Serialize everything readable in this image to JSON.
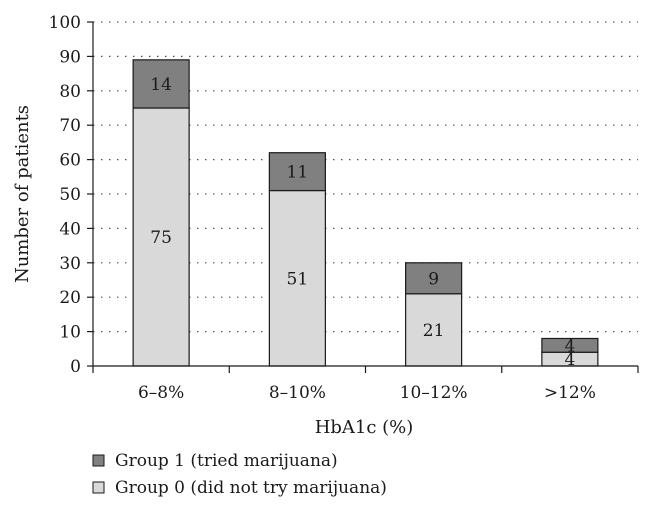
{
  "chart_data": {
    "type": "bar",
    "stacked": true,
    "categories": [
      "6–8%",
      "8–10%",
      "10–12%",
      ">12%"
    ],
    "series": [
      {
        "name": "Group 0 (did not try marijuana)",
        "values": [
          75,
          51,
          21,
          4
        ],
        "color": "#d9d9d9"
      },
      {
        "name": "Group 1 (tried marijuana)",
        "values": [
          14,
          11,
          9,
          4
        ],
        "color": "#808080"
      }
    ],
    "xlabel": "HbA1c (%)",
    "ylabel": "Number of patients",
    "ylim": [
      0,
      100
    ],
    "yticks": [
      0,
      10,
      20,
      30,
      40,
      50,
      60,
      70,
      80,
      90,
      100
    ],
    "grid": "horizontal dotted",
    "legend_position": "bottom-left",
    "legend_order": [
      1,
      0
    ]
  }
}
